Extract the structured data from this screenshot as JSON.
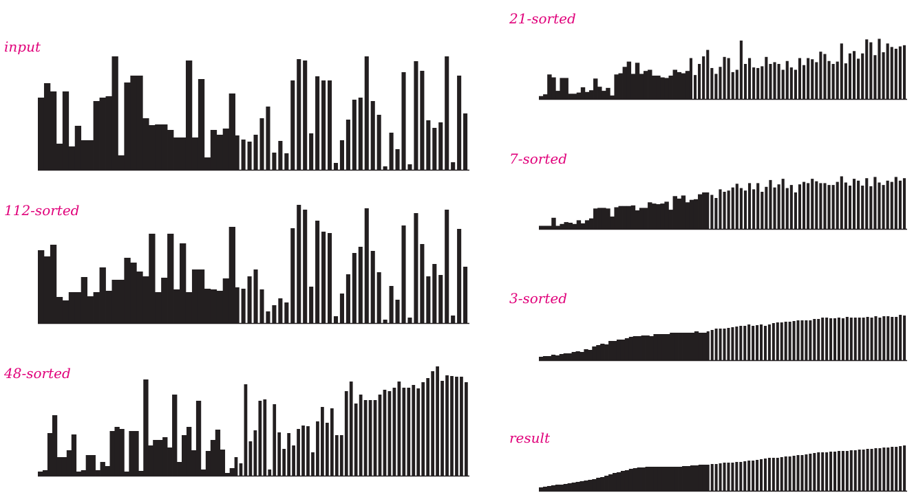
{
  "colors": {
    "label": "#e0007a",
    "bar": "#231f20",
    "background": "#ffffff"
  },
  "chart_data": [
    {
      "type": "bar",
      "label": "input",
      "values": [
        105,
        126,
        114,
        38,
        114,
        34,
        64,
        43,
        43,
        100,
        105,
        107,
        165,
        21,
        127,
        137,
        137,
        75,
        65,
        66,
        66,
        58,
        47,
        47,
        159,
        47,
        132,
        18,
        58,
        51,
        60,
        111,
        50,
        44,
        41,
        51,
        75,
        92,
        25,
        42,
        24,
        130,
        161,
        159,
        53,
        136,
        130,
        130,
        10,
        43,
        73,
        102,
        105,
        165,
        100,
        80,
        5,
        54,
        30,
        142,
        8,
        158,
        144,
        72,
        61,
        69,
        165,
        11,
        137,
        82
      ],
      "sortedCount": 32
    },
    {
      "type": "bar",
      "label": "112-sorted",
      "values": [
        106,
        97,
        114,
        38,
        33,
        45,
        45,
        67,
        39,
        45,
        81,
        47,
        63,
        63,
        95,
        88,
        75,
        68,
        130,
        45,
        66,
        130,
        49,
        116,
        45,
        78,
        78,
        50,
        49,
        47,
        65,
        140,
        52,
        50,
        68,
        78,
        49,
        17,
        26,
        36,
        30,
        138,
        172,
        165,
        53,
        149,
        133,
        131,
        10,
        43,
        71,
        102,
        111,
        167,
        105,
        74,
        5,
        54,
        34,
        142,
        8,
        160,
        115,
        68,
        86,
        70,
        165,
        11,
        137,
        82
      ],
      "sortedCount": 32
    },
    {
      "type": "bar",
      "label": "48-sorted",
      "values": [
        6,
        8,
        62,
        88,
        27,
        27,
        37,
        60,
        6,
        8,
        30,
        30,
        8,
        20,
        14,
        65,
        71,
        68,
        6,
        65,
        65,
        7,
        140,
        44,
        52,
        52,
        56,
        41,
        118,
        20,
        59,
        71,
        37,
        109,
        9,
        36,
        52,
        67,
        38,
        4,
        11,
        27,
        18,
        133,
        50,
        66,
        109,
        111,
        9,
        104,
        63,
        39,
        62,
        44,
        68,
        73,
        72,
        34,
        79,
        100,
        77,
        98,
        59,
        59,
        123,
        137,
        105,
        118,
        110,
        110,
        110,
        118,
        125,
        123,
        128,
        137,
        128,
        128,
        132,
        127,
        136,
        142,
        152,
        159,
        138,
        146,
        145,
        144,
        144,
        136
      ]
    },
    {
      "type": "bar",
      "label": "21-sorted",
      "values": [
        5,
        8,
        42,
        37,
        14,
        36,
        36,
        9,
        9,
        11,
        20,
        12,
        15,
        35,
        21,
        14,
        19,
        6,
        42,
        44,
        55,
        64,
        43,
        62,
        43,
        48,
        50,
        40,
        40,
        37,
        36,
        40,
        50,
        46,
        44,
        48,
        70,
        41,
        60,
        73,
        84,
        53,
        43,
        55,
        72,
        70,
        46,
        50,
        100,
        60,
        70,
        54,
        53,
        56,
        72,
        60,
        63,
        60,
        50,
        65,
        54,
        50,
        70,
        58,
        70,
        68,
        63,
        81,
        77,
        65,
        60,
        64,
        95,
        61,
        78,
        82,
        69,
        78,
        102,
        97,
        75,
        103,
        80,
        95,
        89,
        86,
        90,
        92
      ],
      "sortedCount": 36
    },
    {
      "type": "bar",
      "label": "7-sorted",
      "values": [
        5,
        5,
        5,
        18,
        5,
        8,
        11,
        10,
        8,
        14,
        9,
        14,
        17,
        33,
        34,
        34,
        33,
        20,
        35,
        37,
        37,
        37,
        38,
        30,
        34,
        34,
        43,
        41,
        40,
        41,
        44,
        31,
        53,
        49,
        54,
        43,
        47,
        48,
        56,
        59,
        59,
        55,
        50,
        64,
        60,
        62,
        67,
        73,
        66,
        62,
        74,
        64,
        74,
        60,
        68,
        79,
        67,
        72,
        81,
        66,
        71,
        59,
        72,
        76,
        74,
        81,
        77,
        74,
        74,
        71,
        71,
        76,
        85,
        75,
        70,
        81,
        78,
        70,
        82,
        69,
        84,
        75,
        71,
        78,
        76,
        84,
        78,
        82
      ]
    },
    {
      "type": "bar",
      "label": "3-sorted",
      "values": [
        5,
        6,
        6,
        8,
        7,
        9,
        10,
        10,
        12,
        13,
        12,
        16,
        15,
        20,
        22,
        24,
        23,
        28,
        28,
        30,
        30,
        32,
        34,
        35,
        35,
        36,
        36,
        35,
        38,
        38,
        38,
        38,
        40,
        40,
        40,
        40,
        40,
        40,
        42,
        40,
        40,
        42,
        44,
        46,
        46,
        46,
        47,
        48,
        49,
        50,
        50,
        52,
        50,
        51,
        52,
        50,
        52,
        54,
        55,
        55,
        56,
        56,
        57,
        58,
        58,
        58,
        58,
        60,
        60,
        62,
        62,
        61,
        61,
        62,
        61,
        63,
        62,
        62,
        62,
        62,
        63,
        62,
        64,
        62,
        64,
        64,
        63,
        63,
        66,
        65
      ]
    },
    {
      "type": "bar",
      "label": "result",
      "values": [
        5,
        6,
        7,
        8,
        9,
        9,
        10,
        11,
        12,
        13,
        14,
        15,
        16,
        17,
        19,
        20,
        22,
        24,
        26,
        27,
        29,
        30,
        32,
        33,
        34,
        34,
        35,
        35,
        35,
        35,
        35,
        35,
        35,
        35,
        35,
        36,
        36,
        37,
        37,
        38,
        38,
        38,
        39,
        39,
        40,
        41,
        41,
        41,
        42,
        42,
        43,
        44,
        44,
        45,
        46,
        47,
        48,
        48,
        48,
        49,
        50,
        50,
        51,
        52,
        52,
        53,
        54,
        55,
        56,
        56,
        56,
        57,
        57,
        58,
        58,
        58,
        59,
        59,
        60,
        60,
        61,
        61,
        62,
        62,
        63,
        63,
        64,
        64,
        65,
        66
      ]
    }
  ]
}
